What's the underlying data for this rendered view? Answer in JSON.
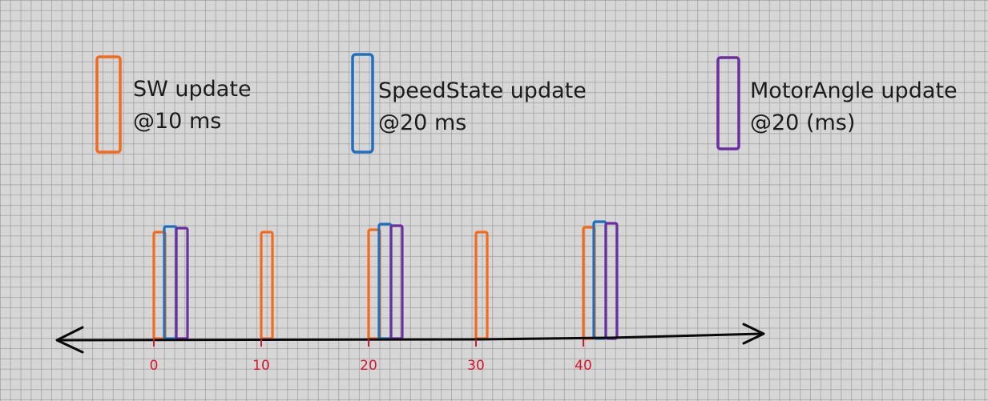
{
  "colors": {
    "sw": "#f26b1d",
    "speed": "#1f6fc0",
    "motor": "#6a2f9e",
    "axis": "#0a0a0a",
    "tick": "#d8162c"
  },
  "legend": [
    {
      "key": "sw",
      "line1": "SW update",
      "line2": "@10 ms"
    },
    {
      "key": "speed",
      "line1": "SpeedState update",
      "line2": "@20 ms"
    },
    {
      "key": "motor",
      "line1": "MotorAngle update",
      "line2": "@20 (ms)"
    }
  ],
  "axis": {
    "ticks": [
      "0",
      "10",
      "20",
      "30",
      "40"
    ]
  },
  "timeline": [
    {
      "time": 0,
      "updates": [
        "sw",
        "speed",
        "motor"
      ]
    },
    {
      "time": 10,
      "updates": [
        "sw"
      ]
    },
    {
      "time": 20,
      "updates": [
        "sw",
        "speed",
        "motor"
      ]
    },
    {
      "time": 30,
      "updates": [
        "sw"
      ]
    },
    {
      "time": 40,
      "updates": [
        "sw",
        "speed",
        "motor"
      ]
    }
  ]
}
